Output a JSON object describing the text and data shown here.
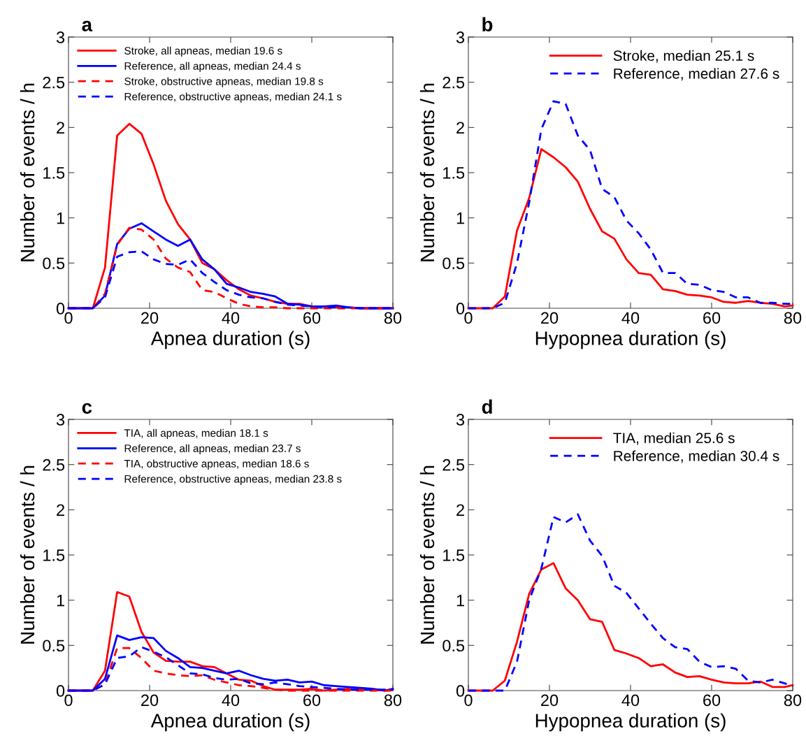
{
  "chart_data": [
    {
      "type": "line",
      "title": "a",
      "xlabel": "Apnea duration (s)",
      "ylabel": "Number of events / h",
      "legend": "top left",
      "grid": false,
      "xlim": [
        0,
        80
      ],
      "ylim": [
        0,
        3
      ],
      "xticks": [
        0,
        20,
        40,
        60,
        80
      ],
      "yticks": [
        0,
        0.5,
        1,
        1.5,
        2,
        2.5,
        3
      ],
      "x": [
        0,
        3,
        6,
        9,
        12,
        15,
        18,
        21,
        24,
        27,
        30,
        33,
        36,
        39,
        42,
        45,
        48,
        51,
        54,
        57,
        60,
        63,
        66,
        69,
        72,
        75,
        78,
        80
      ],
      "series": [
        {
          "name": "Stroke, all apneas, median 19.6 s",
          "color": "#ff0000",
          "line_style": "solid",
          "values": [
            0,
            0,
            0,
            0.45,
            1.91,
            2.04,
            1.93,
            1.59,
            1.19,
            0.93,
            0.76,
            0.5,
            0.43,
            0.31,
            0.21,
            0.14,
            0.11,
            0.07,
            0.05,
            0.05,
            0.02,
            0.02,
            0.01,
            0.01,
            0,
            0,
            0,
            0
          ]
        },
        {
          "name": "Reference, all apneas, median 24.4 s",
          "color": "#0000ff",
          "line_style": "solid",
          "values": [
            0,
            0,
            0,
            0.14,
            0.71,
            0.88,
            0.94,
            0.85,
            0.76,
            0.69,
            0.76,
            0.54,
            0.43,
            0.27,
            0.23,
            0.18,
            0.16,
            0.13,
            0.05,
            0.04,
            0.02,
            0.02,
            0.03,
            0.01,
            0,
            0,
            0,
            0
          ]
        },
        {
          "name": "Stroke, obstructive apneas, median 19.8 s",
          "color": "#ff0000",
          "line_style": "dashed",
          "values": [
            0,
            0,
            0,
            0.16,
            0.7,
            0.89,
            0.87,
            0.76,
            0.55,
            0.45,
            0.4,
            0.2,
            0.18,
            0.11,
            0.05,
            0.02,
            0.01,
            0.01,
            0,
            0,
            0,
            0,
            0,
            0,
            0,
            0,
            0,
            0
          ]
        },
        {
          "name": "Reference, obstructive apneas, median 24.1 s",
          "color": "#0000ff",
          "line_style": "dashed",
          "values": [
            0,
            0,
            0,
            0.12,
            0.57,
            0.62,
            0.63,
            0.54,
            0.49,
            0.48,
            0.54,
            0.39,
            0.29,
            0.2,
            0.15,
            0.12,
            0.11,
            0.07,
            0.04,
            0.03,
            0.02,
            0.01,
            0.01,
            0.01,
            0,
            0,
            0,
            0
          ]
        }
      ]
    },
    {
      "type": "line",
      "title": "b",
      "xlabel": "Hypopnea duration (s)",
      "ylabel": "Number of events / h",
      "legend": "top right",
      "grid": false,
      "xlim": [
        0,
        80
      ],
      "ylim": [
        0,
        3
      ],
      "xticks": [
        0,
        20,
        40,
        60,
        80
      ],
      "yticks": [
        0,
        0.5,
        1,
        1.5,
        2,
        2.5,
        3
      ],
      "x": [
        0,
        3,
        6,
        9,
        12,
        15,
        18,
        21,
        24,
        27,
        30,
        33,
        36,
        39,
        42,
        45,
        48,
        51,
        54,
        57,
        60,
        63,
        66,
        69,
        72,
        75,
        78,
        80
      ],
      "series": [
        {
          "name": "Stroke, median 25.1 s",
          "color": "#ff0000",
          "line_style": "solid",
          "values": [
            0,
            0,
            0,
            0.13,
            0.86,
            1.22,
            1.76,
            1.67,
            1.56,
            1.4,
            1.1,
            0.85,
            0.77,
            0.54,
            0.39,
            0.37,
            0.21,
            0.19,
            0.15,
            0.14,
            0.12,
            0.07,
            0.06,
            0.08,
            0.06,
            0.05,
            0.02,
            0.03
          ]
        },
        {
          "name": "Reference, median 27.6 s",
          "color": "#0000ff",
          "line_style": "dashed",
          "values": [
            0,
            0,
            0,
            0.06,
            0.5,
            1.17,
            1.98,
            2.29,
            2.26,
            1.91,
            1.75,
            1.32,
            1.23,
            0.97,
            0.83,
            0.65,
            0.39,
            0.39,
            0.27,
            0.26,
            0.2,
            0.18,
            0.12,
            0.12,
            0.06,
            0.06,
            0.05,
            0.05
          ]
        }
      ]
    },
    {
      "type": "line",
      "title": "c",
      "xlabel": "Apnea duration (s)",
      "ylabel": "Number of events / h",
      "legend": "top left",
      "grid": false,
      "xlim": [
        0,
        80
      ],
      "ylim": [
        0,
        3
      ],
      "xticks": [
        0,
        20,
        40,
        60,
        80
      ],
      "yticks": [
        0,
        0.5,
        1,
        1.5,
        2,
        2.5,
        3
      ],
      "x": [
        0,
        3,
        6,
        9,
        12,
        15,
        18,
        21,
        24,
        27,
        30,
        33,
        36,
        39,
        42,
        45,
        48,
        51,
        54,
        57,
        60,
        63,
        66,
        69,
        72,
        75,
        78,
        80
      ],
      "series": [
        {
          "name": "TIA, all apneas, median 18.1 s",
          "color": "#ff0000",
          "line_style": "solid",
          "values": [
            0,
            0,
            0,
            0.22,
            1.09,
            1.04,
            0.65,
            0.42,
            0.33,
            0.32,
            0.32,
            0.27,
            0.26,
            0.19,
            0.12,
            0.11,
            0.05,
            0.01,
            0.01,
            0.01,
            0.02,
            0,
            0.01,
            0.02,
            0.01,
            0.01,
            0,
            0.01
          ]
        },
        {
          "name": "Reference, all apneas, median 23.7 s",
          "color": "#0000ff",
          "line_style": "solid",
          "values": [
            0,
            0,
            0,
            0.13,
            0.61,
            0.56,
            0.59,
            0.58,
            0.44,
            0.36,
            0.26,
            0.25,
            0.22,
            0.19,
            0.22,
            0.17,
            0.13,
            0.11,
            0.12,
            0.09,
            0.1,
            0.06,
            0.05,
            0.04,
            0.03,
            0.02,
            0,
            0.02
          ]
        },
        {
          "name": "TIA, obstructive apneas, median 18.6 s",
          "color": "#ff0000",
          "line_style": "dashed",
          "values": [
            0,
            0,
            0,
            0.07,
            0.47,
            0.47,
            0.36,
            0.22,
            0.19,
            0.17,
            0.16,
            0.17,
            0.12,
            0.09,
            0.06,
            0.05,
            0.03,
            0.01,
            0,
            0,
            0,
            0,
            0,
            0,
            0,
            0,
            0,
            0
          ]
        },
        {
          "name": "Reference, obstructive apneas, median 23.8 s",
          "color": "#0000ff",
          "line_style": "dashed",
          "values": [
            0,
            0,
            0,
            0.07,
            0.36,
            0.38,
            0.48,
            0.43,
            0.37,
            0.28,
            0.19,
            0.18,
            0.14,
            0.12,
            0.13,
            0.08,
            0.07,
            0.09,
            0.07,
            0.05,
            0.04,
            0.03,
            0.02,
            0.01,
            0.01,
            0.01,
            0.01,
            0.01
          ]
        }
      ]
    },
    {
      "type": "line",
      "title": "d",
      "xlabel": "Hypopnea duration (s)",
      "ylabel": "Number of events / h",
      "legend": "top right",
      "grid": false,
      "xlim": [
        0,
        80
      ],
      "ylim": [
        0,
        3
      ],
      "xticks": [
        0,
        20,
        40,
        60,
        80
      ],
      "yticks": [
        0,
        0.5,
        1,
        1.5,
        2,
        2.5,
        3
      ],
      "x": [
        0,
        3,
        6,
        9,
        12,
        15,
        18,
        21,
        24,
        27,
        30,
        33,
        36,
        39,
        42,
        45,
        48,
        51,
        54,
        57,
        60,
        63,
        66,
        69,
        72,
        75,
        78,
        80
      ],
      "series": [
        {
          "name": "TIA, median 25.6 s",
          "color": "#ff0000",
          "line_style": "solid",
          "values": [
            0,
            0,
            0,
            0.11,
            0.54,
            1.07,
            1.34,
            1.41,
            1.13,
            1,
            0.79,
            0.76,
            0.45,
            0.41,
            0.36,
            0.27,
            0.29,
            0.2,
            0.15,
            0.16,
            0.12,
            0.09,
            0.08,
            0.08,
            0.1,
            0.04,
            0.04,
            0.06
          ]
        },
        {
          "name": "Reference, median 30.4 s",
          "color": "#0000ff",
          "line_style": "dashed",
          "values": [
            0,
            0,
            0,
            0,
            0.32,
            1,
            1.35,
            1.92,
            1.86,
            1.95,
            1.66,
            1.49,
            1.16,
            1.08,
            0.91,
            0.74,
            0.58,
            0.48,
            0.46,
            0.32,
            0.26,
            0.27,
            0.24,
            0.11,
            0.09,
            0.12,
            0.08,
            0.05
          ]
        }
      ]
    }
  ]
}
